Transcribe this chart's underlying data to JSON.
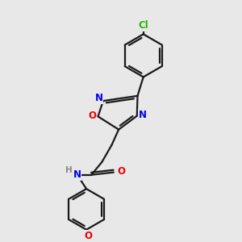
{
  "background_color": "#e8e8e8",
  "bond_color": "#1a1a1a",
  "bond_width": 1.6,
  "atom_colors": {
    "N": "#0000ee",
    "O": "#ee0000",
    "Cl": "#22bb00",
    "H": "#888888"
  },
  "font_size": 8.5
}
